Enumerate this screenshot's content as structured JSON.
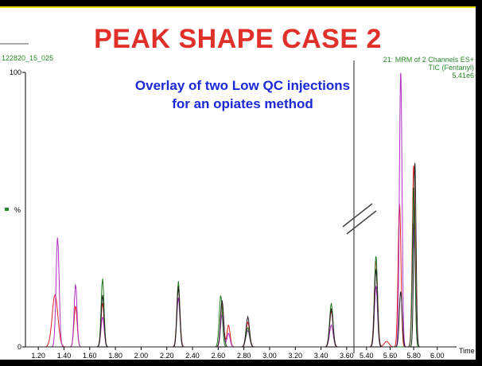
{
  "slide": {
    "title": "PEAK SHAPE CASE 2"
  },
  "annotation": {
    "line1": "Overlay of two Low QC injections",
    "line2": "for an opiates method"
  },
  "header": {
    "left_id": "122820_15_025",
    "right_line1": "21: MRM of 2 Channels ES+",
    "right_line2": "TIC (Fentanyl)",
    "right_line3": "5.41e6"
  },
  "colors": {
    "title": "#e0302a",
    "annotation": "#1b28d6",
    "header_text": "#2a8a2a"
  },
  "chart_data": {
    "type": "line",
    "title": "",
    "xlabel": "Time",
    "ylabel": "%",
    "ylim": [
      0,
      100
    ],
    "y_ticks": [
      "100",
      "0"
    ],
    "broken_x_axis": true,
    "left_panel": {
      "xlim": [
        1.1,
        3.65
      ],
      "ticks": [
        "1.20",
        "1.40",
        "1.60",
        "1.80",
        "2.00",
        "2.20",
        "2.40",
        "2.60",
        "2.80",
        "3.00",
        "3.20",
        "3.40",
        "3.60"
      ]
    },
    "right_panel": {
      "xlim": [
        5.3,
        6.15
      ],
      "ticks": [
        "5.40",
        "5.60",
        "5.80",
        "6.00"
      ]
    },
    "series": [
      {
        "color": "#e02020",
        "peaks": [
          [
            1.33,
            19,
            0.022
          ],
          [
            1.49,
            15,
            0.012
          ],
          [
            1.7,
            16,
            0.012
          ],
          [
            2.29,
            23,
            0.012
          ],
          [
            2.63,
            16,
            0.012
          ],
          [
            2.68,
            8,
            0.012
          ],
          [
            2.83,
            9,
            0.014
          ],
          [
            3.48,
            13,
            0.014
          ],
          [
            5.48,
            31,
            0.014
          ],
          [
            5.8,
            66,
            0.012
          ],
          [
            5.68,
            52,
            0.012
          ],
          [
            5.57,
            2,
            0.02
          ]
        ]
      },
      {
        "color": "#b030c0",
        "peaks": [
          [
            1.35,
            40,
            0.012
          ],
          [
            1.49,
            23,
            0.011
          ],
          [
            1.7,
            11,
            0.012
          ],
          [
            2.29,
            18,
            0.012
          ],
          [
            2.63,
            12,
            0.012
          ],
          [
            2.68,
            5,
            0.012
          ],
          [
            2.83,
            6,
            0.014
          ],
          [
            3.48,
            8,
            0.014
          ],
          [
            5.48,
            22,
            0.013
          ],
          [
            5.69,
            100,
            0.011
          ],
          [
            5.8,
            45,
            0.012
          ]
        ]
      },
      {
        "color": "#1e7a1e",
        "peaks": [
          [
            1.7,
            25,
            0.011
          ],
          [
            2.29,
            24,
            0.011
          ],
          [
            2.62,
            19,
            0.012
          ],
          [
            2.83,
            7,
            0.014
          ],
          [
            3.48,
            16,
            0.013
          ],
          [
            5.48,
            33,
            0.013
          ],
          [
            5.8,
            58,
            0.011
          ]
        ]
      },
      {
        "color": "#202020",
        "peaks": [
          [
            1.7,
            19,
            0.011
          ],
          [
            2.29,
            22,
            0.011
          ],
          [
            2.63,
            17,
            0.012
          ],
          [
            2.83,
            11,
            0.013
          ],
          [
            3.48,
            14,
            0.013
          ],
          [
            5.48,
            28,
            0.013
          ],
          [
            5.81,
            67,
            0.01
          ],
          [
            5.69,
            20,
            0.012
          ]
        ]
      }
    ]
  }
}
